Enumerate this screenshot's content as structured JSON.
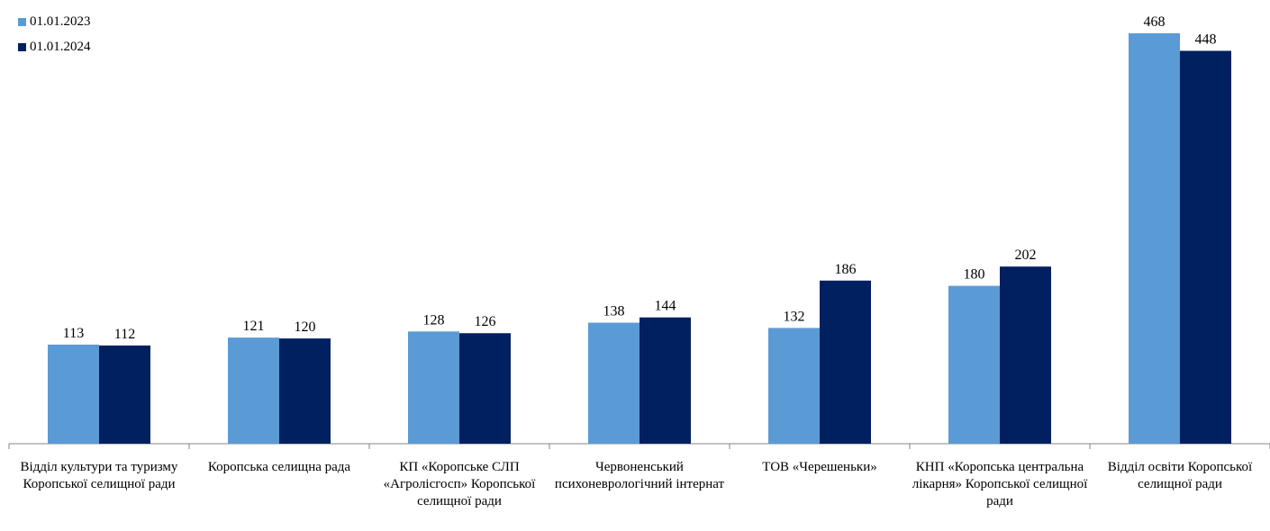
{
  "chart_data": {
    "type": "bar",
    "categories": [
      "Відділ культури та туризму Коропської селищної ради",
      "Коропська селищна рада",
      "КП «Коропське СЛП «Агролісгосп» Коропської селищної ради",
      "Червоненський психоневрологічний інтернат",
      "ТОВ «Черешеньки»",
      "КНП «Коропська центральна лікарня» Коропської селищної ради",
      "Відділ освіти Коропської селищної ради"
    ],
    "series": [
      {
        "name": "01.01.2023",
        "color": "#5B9BD5",
        "values": [
          113,
          121,
          128,
          138,
          132,
          180,
          468
        ]
      },
      {
        "name": "01.01.2024",
        "color": "#002060",
        "values": [
          112,
          120,
          126,
          144,
          186,
          202,
          448
        ]
      }
    ],
    "ylim": [
      0,
      480
    ],
    "grid": false,
    "legend_position": "top-left",
    "data_labels": true
  }
}
